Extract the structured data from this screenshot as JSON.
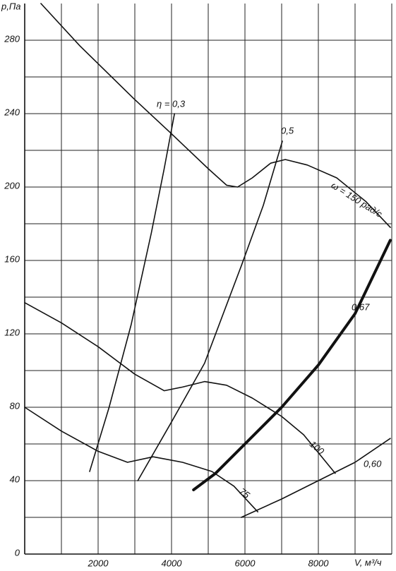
{
  "chart_data": {
    "type": "line",
    "x_label": "V, м³/ч",
    "y_label": "р,Па",
    "xlim": [
      0,
      10000
    ],
    "ylim": [
      0,
      300
    ],
    "xticks": [
      2000,
      4000,
      6000,
      8000
    ],
    "yticks": [
      0,
      40,
      80,
      120,
      160,
      200,
      240,
      280
    ],
    "xgrid": [
      1000,
      3000,
      5000,
      7000,
      9000,
      10000
    ],
    "ygrid": [
      20,
      60,
      100,
      140,
      180,
      220,
      260
    ],
    "series": [
      {
        "name": "ω = 150 рад/с",
        "color": "#111111",
        "width": 1.6,
        "x": [
          442,
          1500,
          2981,
          4000,
          5000,
          5500,
          5800,
          6200,
          6700,
          7100,
          7700,
          8500,
          9300,
          9962
        ],
        "values": [
          300,
          277,
          248,
          229,
          210,
          201,
          200,
          205,
          213,
          215,
          212,
          205,
          192,
          178
        ]
      },
      {
        "name": "100",
        "color": "#111111",
        "width": 1.6,
        "x": [
          0,
          1000,
          2000,
          3000,
          3800,
          4300,
          4900,
          5500,
          6200,
          7000,
          7600,
          8460
        ],
        "values": [
          137,
          126,
          113,
          98,
          89,
          91,
          94,
          92,
          85,
          75,
          65,
          44
        ]
      },
      {
        "name": "75",
        "color": "#111111",
        "width": 1.6,
        "x": [
          0,
          1000,
          2000,
          2800,
          3500,
          4300,
          5100,
          5700,
          6350
        ],
        "values": [
          80,
          67,
          56,
          50,
          53,
          50,
          45,
          37,
          23
        ]
      },
      {
        "name": "η = 0,3",
        "color": "#111111",
        "width": 1.6,
        "x": [
          1770,
          2300,
          2900,
          3450,
          3800,
          4080
        ],
        "values": [
          45,
          80,
          125,
          175,
          210,
          240
        ]
      },
      {
        "name": "0,5",
        "color": "#111111",
        "width": 1.6,
        "x": [
          3080,
          4000,
          4900,
          5900,
          6500,
          7020
        ],
        "values": [
          40,
          72,
          104,
          157,
          190,
          225
        ]
      },
      {
        "name": "0,67",
        "color": "#111111",
        "width": 4,
        "x": [
          4600,
          5200,
          6000,
          7000,
          8000,
          9000,
          9960
        ],
        "values": [
          35,
          44,
          60,
          80,
          103,
          131,
          171
        ]
      },
      {
        "name": "0,60",
        "color": "#111111",
        "width": 1.6,
        "x": [
          5900,
          7000,
          8000,
          9000,
          9960
        ],
        "values": [
          20,
          30,
          40,
          50,
          63
        ]
      }
    ]
  }
}
